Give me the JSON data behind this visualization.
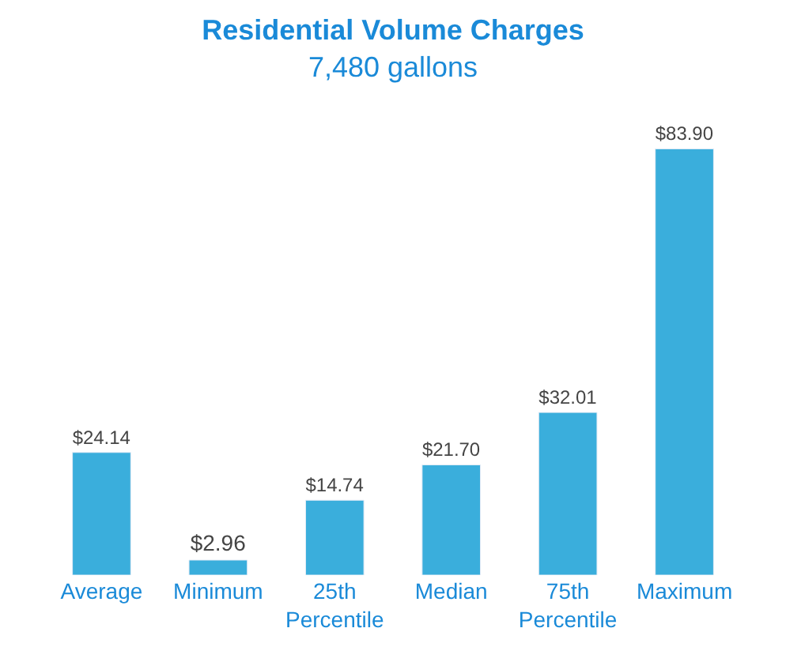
{
  "chart_data": {
    "type": "bar",
    "title": "Residential Volume Charges",
    "subtitle": "7,480 gallons",
    "categories": [
      "Average",
      "Minimum",
      "25th Percentile",
      "Median",
      "75th Percentile",
      "Maximum"
    ],
    "values": [
      24.14,
      2.96,
      14.74,
      21.7,
      32.01,
      83.9
    ],
    "value_labels": [
      "$24.14",
      "$2.96",
      "$14.74",
      "$21.70",
      "$32.01",
      "$83.90"
    ],
    "color": "#3aaedc"
  }
}
